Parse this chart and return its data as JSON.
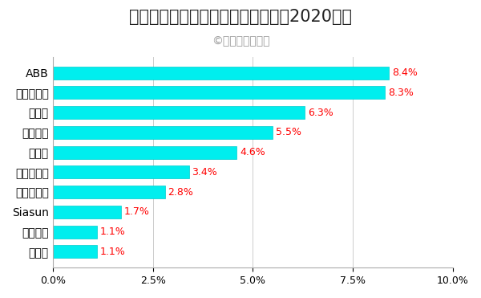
{
  "title": "産業用ロボットの推定世界シェア（2020年）",
  "subtitle": "©業界再編の動向",
  "categories": [
    "ABB",
    "ファナック",
    "コマウ",
    "安川電機",
    "クーカ",
    "川崎重工業",
    "ストーブリ",
    "Siasun",
    "エプソン",
    "不二越"
  ],
  "values": [
    8.4,
    8.3,
    6.3,
    5.5,
    4.6,
    3.4,
    2.8,
    1.7,
    1.1,
    1.1
  ],
  "bar_color": "#00EEEE",
  "bar_edge_color": "#00CCCC",
  "label_color": "#FF0000",
  "title_color": "#222222",
  "subtitle_color": "#999999",
  "background_color": "#FFFFFF",
  "xlim": [
    0,
    10.0
  ],
  "xticks": [
    0.0,
    2.5,
    5.0,
    7.5,
    10.0
  ],
  "title_fontsize": 15,
  "subtitle_fontsize": 10,
  "label_fontsize": 9,
  "tick_fontsize": 9,
  "category_fontsize": 10
}
